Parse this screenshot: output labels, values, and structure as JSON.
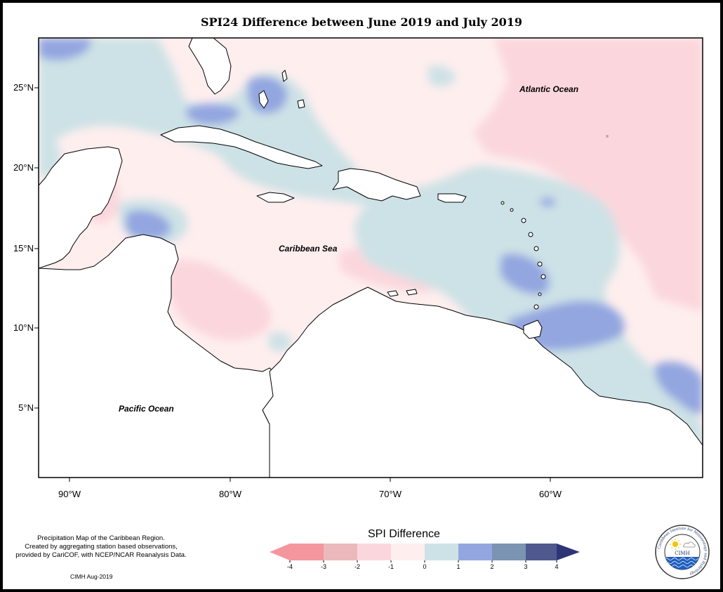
{
  "title": "SPI24 Difference between June 2019 and July 2019",
  "axes": {
    "lat_labels": [
      "25°N",
      "20°N",
      "15°N",
      "10°N",
      "5°N"
    ],
    "lon_labels": [
      "90°W",
      "80°W",
      "70°W",
      "60°W"
    ]
  },
  "map_labels": {
    "atlantic": "Atlantic Ocean",
    "caribbean": "Caribbean Sea",
    "pacific": "Pacific Ocean"
  },
  "legend": {
    "title": "SPI Difference",
    "ticks": [
      "-4",
      "-3",
      "-2",
      "-1",
      "0",
      "1",
      "2",
      "3",
      "4"
    ],
    "colors": {
      "lt_minus3": "#f4969e",
      "minus3_minus2": "#ebb9bc",
      "minus2_minus1": "#fbd7dd",
      "minus1_0": "#feeeee",
      "0_1": "#cde2e6",
      "1_2": "#93a6e0",
      "2_3": "#7a94b2",
      "gt_3": "#4f598e",
      "overflow_high": "#2e3577"
    }
  },
  "credit": {
    "line1": "Precipitation Map of the Caribbean Region.",
    "line2": "Created by aggregating station based observations,",
    "line3": "provided by CariCOF, with NCEP/NCAR Reanalysis Data.",
    "code": "CIMH Aug-2019"
  },
  "logo": {
    "ring_text": "Caribbean Institute for Meteorology and Hydrology",
    "acronym": "CIMH"
  }
}
